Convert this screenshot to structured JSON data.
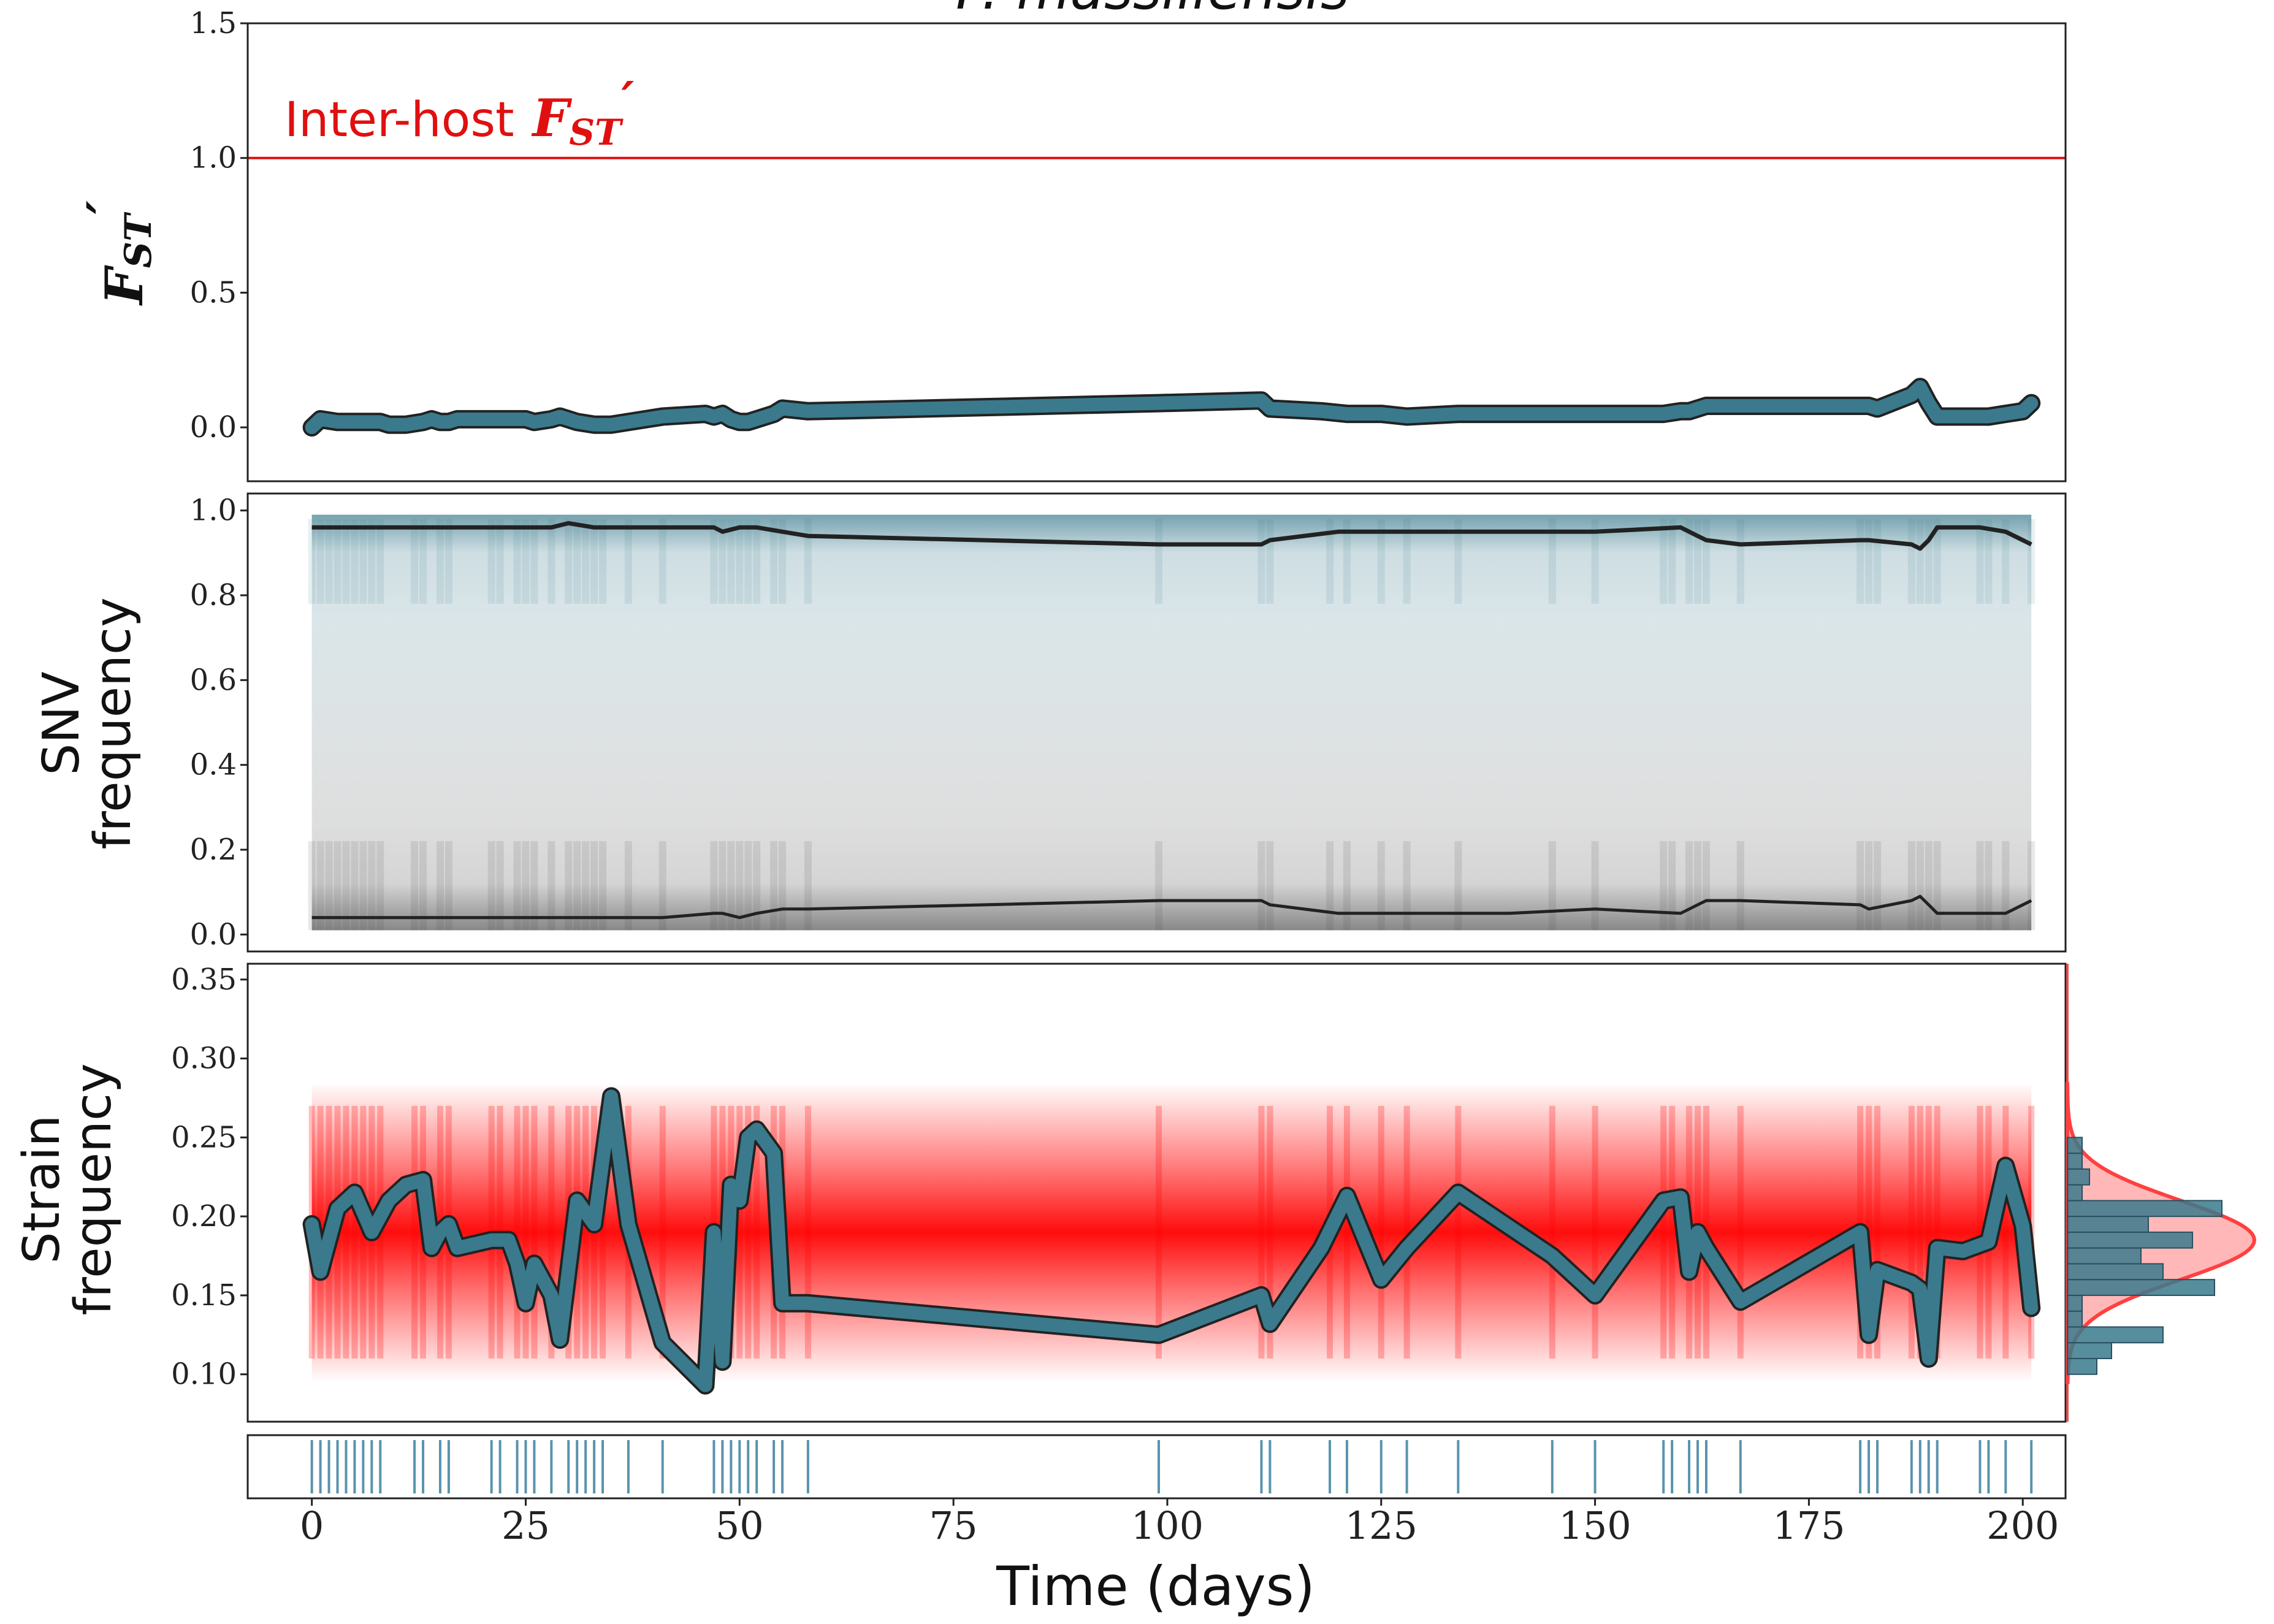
{
  "figure": {
    "title": "P. massiliensis",
    "xlabel": "Time (days)"
  },
  "colors": {
    "teal": "#3a7a8c",
    "red": "#ff0000",
    "dark": "#222222",
    "sampling": "#5a93ad"
  },
  "chart_data": [
    {
      "id": "fst",
      "type": "line",
      "ylabel_main": "F",
      "ylabel_sub": "ST",
      "ylabel_prime": "′",
      "ylim": [
        -0.2,
        1.5
      ],
      "yticks": [
        "0.0",
        "0.5",
        "1.0",
        "1.5"
      ],
      "ytick_values": [
        0.0,
        0.5,
        1.0,
        1.5
      ],
      "reference_line": {
        "value": 1.0,
        "label_text": "Inter-host",
        "label_main": "F",
        "label_sub": "ST",
        "label_prime": "′",
        "color": "#e01010"
      },
      "series": [
        {
          "x": [
            0,
            1,
            3,
            5,
            7,
            8,
            9,
            11,
            13,
            14,
            15,
            16,
            17,
            21,
            23,
            24,
            25,
            26,
            28,
            29,
            31,
            33,
            35,
            37,
            41,
            46,
            47,
            48,
            49,
            50,
            51,
            52,
            54,
            55,
            58,
            99,
            111,
            112,
            118,
            121,
            125,
            128,
            134,
            145,
            150,
            158,
            160,
            161,
            162,
            163,
            167,
            181,
            182,
            183,
            187,
            188,
            189,
            190,
            193,
            194,
            196,
            198,
            200,
            201
          ],
          "y": [
            0.0,
            0.03,
            0.02,
            0.02,
            0.02,
            0.02,
            0.01,
            0.01,
            0.02,
            0.03,
            0.02,
            0.02,
            0.03,
            0.03,
            0.03,
            0.03,
            0.03,
            0.02,
            0.03,
            0.04,
            0.02,
            0.01,
            0.01,
            0.02,
            0.04,
            0.05,
            0.04,
            0.05,
            0.03,
            0.02,
            0.02,
            0.03,
            0.05,
            0.07,
            0.06,
            0.09,
            0.1,
            0.07,
            0.06,
            0.05,
            0.05,
            0.04,
            0.05,
            0.05,
            0.05,
            0.05,
            0.06,
            0.06,
            0.07,
            0.08,
            0.08,
            0.08,
            0.08,
            0.07,
            0.12,
            0.15,
            0.09,
            0.04,
            0.04,
            0.04,
            0.04,
            0.05,
            0.06,
            0.09
          ]
        }
      ]
    },
    {
      "id": "snv",
      "type": "line",
      "ylabel_line1": "SNV",
      "ylabel_line2": "frequency",
      "ylim": [
        -0.04,
        1.04
      ],
      "yticks": [
        "0.0",
        "0.2",
        "0.4",
        "0.6",
        "0.8",
        "1.0"
      ],
      "ytick_values": [
        0.0,
        0.2,
        0.4,
        0.6,
        0.8,
        1.0
      ],
      "series": [
        {
          "name": "",
          "x": [
            0,
            5,
            10,
            15,
            20,
            25,
            28,
            30,
            33,
            37,
            41,
            47,
            48,
            50,
            52,
            55,
            58,
            99,
            111,
            112,
            120,
            130,
            140,
            150,
            160,
            161,
            162,
            163,
            167,
            181,
            182,
            187,
            188,
            189,
            190,
            195,
            198,
            201
          ],
          "y": [
            0.96,
            0.96,
            0.96,
            0.96,
            0.96,
            0.96,
            0.96,
            0.97,
            0.96,
            0.96,
            0.96,
            0.96,
            0.95,
            0.96,
            0.96,
            0.95,
            0.94,
            0.92,
            0.92,
            0.93,
            0.95,
            0.95,
            0.95,
            0.95,
            0.96,
            0.95,
            0.94,
            0.93,
            0.92,
            0.93,
            0.93,
            0.92,
            0.91,
            0.93,
            0.96,
            0.96,
            0.95,
            0.92
          ]
        },
        {
          "name": "",
          "x": [
            0,
            5,
            10,
            15,
            20,
            25,
            28,
            30,
            33,
            37,
            41,
            47,
            48,
            50,
            52,
            55,
            58,
            99,
            111,
            112,
            120,
            130,
            140,
            150,
            160,
            161,
            162,
            163,
            167,
            181,
            182,
            187,
            188,
            189,
            190,
            195,
            198,
            201
          ],
          "y": [
            0.04,
            0.04,
            0.04,
            0.04,
            0.04,
            0.04,
            0.04,
            0.04,
            0.04,
            0.04,
            0.04,
            0.05,
            0.05,
            0.04,
            0.05,
            0.06,
            0.06,
            0.08,
            0.08,
            0.07,
            0.05,
            0.05,
            0.05,
            0.06,
            0.05,
            0.06,
            0.07,
            0.08,
            0.08,
            0.07,
            0.06,
            0.08,
            0.09,
            0.07,
            0.05,
            0.05,
            0.05,
            0.08
          ]
        }
      ]
    },
    {
      "id": "strain",
      "type": "line",
      "ylabel_line1": "Strain",
      "ylabel_line2": "frequency",
      "ylim": [
        0.07,
        0.36
      ],
      "yticks": [
        "0.10",
        "0.15",
        "0.20",
        "0.25",
        "0.30",
        "0.35"
      ],
      "ytick_values": [
        0.1,
        0.15,
        0.2,
        0.25,
        0.3,
        0.35
      ],
      "series": [
        {
          "x": [
            0,
            1,
            3,
            5,
            7,
            8,
            9,
            11,
            13,
            14,
            15,
            16,
            17,
            21,
            23,
            24,
            25,
            26,
            28,
            29,
            31,
            33,
            35,
            37,
            41,
            46,
            47,
            48,
            49,
            50,
            51,
            52,
            54,
            55,
            58,
            99,
            111,
            112,
            118,
            121,
            125,
            128,
            134,
            145,
            150,
            158,
            160,
            161,
            162,
            163,
            167,
            181,
            182,
            183,
            187,
            188,
            189,
            190,
            193,
            194,
            196,
            198,
            200,
            201
          ],
          "y": [
            0.195,
            0.165,
            0.205,
            0.215,
            0.19,
            0.2,
            0.21,
            0.22,
            0.223,
            0.18,
            0.19,
            0.195,
            0.18,
            0.185,
            0.185,
            0.17,
            0.145,
            0.17,
            0.15,
            0.122,
            0.21,
            0.195,
            0.276,
            0.195,
            0.12,
            0.093,
            0.19,
            0.108,
            0.22,
            0.21,
            0.25,
            0.255,
            0.24,
            0.145,
            0.145,
            0.125,
            0.15,
            0.132,
            0.18,
            0.213,
            0.16,
            0.18,
            0.215,
            0.175,
            0.15,
            0.21,
            0.212,
            0.165,
            0.19,
            0.18,
            0.146,
            0.19,
            0.125,
            0.166,
            0.158,
            0.154,
            0.11,
            0.18,
            0.178,
            0.18,
            0.184,
            0.232,
            0.194,
            0.142
          ]
        }
      ],
      "histogram": {
        "bin_edges": [
          0.1,
          0.11,
          0.12,
          0.13,
          0.14,
          0.15,
          0.16,
          0.17,
          0.18,
          0.19,
          0.2,
          0.21,
          0.22,
          0.23,
          0.24,
          0.25
        ],
        "counts": [
          4,
          6,
          13,
          2,
          2,
          20,
          13,
          10,
          17,
          11,
          21,
          2,
          3,
          2,
          2,
          0
        ]
      }
    },
    {
      "id": "sampling",
      "type": "rug",
      "x": [
        0,
        1,
        2,
        3,
        4,
        5,
        6,
        7,
        8,
        12,
        13,
        15,
        16,
        21,
        22,
        24,
        25,
        26,
        28,
        30,
        31,
        32,
        33,
        34,
        37,
        41,
        47,
        48,
        49,
        50,
        51,
        52,
        54,
        55,
        58,
        99,
        111,
        112,
        119,
        121,
        125,
        128,
        134,
        145,
        150,
        158,
        159,
        161,
        162,
        163,
        167,
        181,
        182,
        183,
        187,
        188,
        189,
        190,
        195,
        196,
        198,
        201
      ],
      "xlim": [
        -7.5,
        205
      ],
      "xticks": [
        "0",
        "25",
        "50",
        "75",
        "100",
        "125",
        "150",
        "175",
        "200"
      ],
      "xtick_values": [
        0,
        25,
        50,
        75,
        100,
        125,
        150,
        175,
        200
      ]
    }
  ]
}
